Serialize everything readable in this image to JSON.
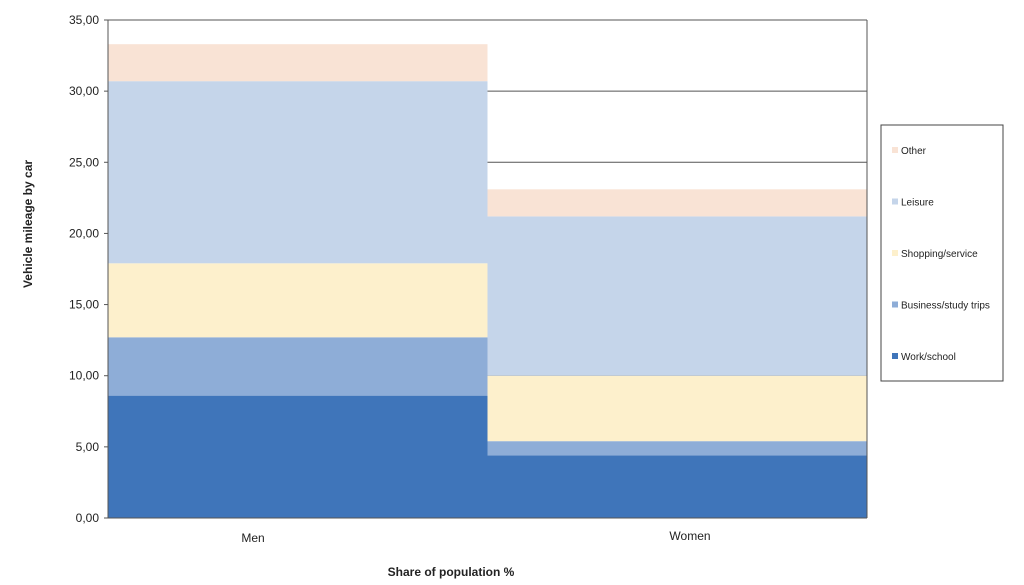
{
  "chart_data": {
    "type": "bar",
    "stacked": true,
    "categories": [
      "Men",
      "Women"
    ],
    "series": [
      {
        "name": "Work/school",
        "values": [
          8.6,
          4.4
        ],
        "color": "#3f75ba"
      },
      {
        "name": "Business/study trips",
        "values": [
          4.1,
          1.0
        ],
        "color": "#8eadd7"
      },
      {
        "name": "Shopping/service",
        "values": [
          5.2,
          4.6
        ],
        "color": "#fdf0cc"
      },
      {
        "name": "Leisure",
        "values": [
          12.8,
          11.2
        ],
        "color": "#c5d5ea"
      },
      {
        "name": "Other",
        "values": [
          2.6,
          1.9
        ],
        "color": "#f9e3d5"
      }
    ],
    "xlabel": "Share of population %",
    "ylabel": "Vehicle mileage by car",
    "ylim": [
      0,
      35
    ],
    "yticks": [
      0,
      5,
      10,
      15,
      20,
      25,
      30,
      35
    ],
    "ytick_labels": [
      "0,00",
      "5,00",
      "10,00",
      "15,00",
      "20,00",
      "25,00",
      "30,00",
      "35,00"
    ],
    "grid": true,
    "legend_position": "right",
    "legend_order": [
      "Other",
      "Leisure",
      "Shopping/service",
      "Business/study trips",
      "Work/school"
    ]
  }
}
